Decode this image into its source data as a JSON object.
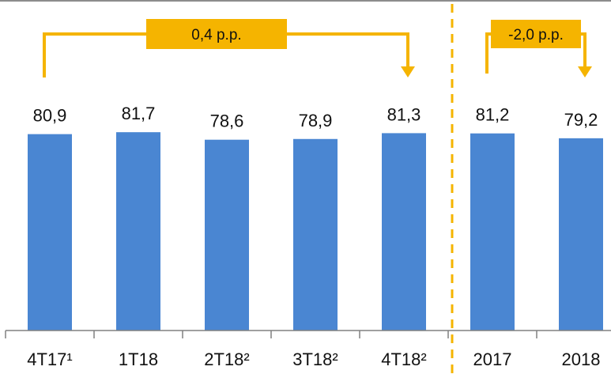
{
  "chart_data": {
    "type": "bar",
    "categories": [
      "4T17¹",
      "1T18",
      "2T18²",
      "3T18²",
      "4T18²",
      "2017",
      "2018"
    ],
    "values": [
      80.9,
      81.7,
      78.6,
      78.9,
      81.3,
      81.2,
      79.2
    ],
    "value_labels": [
      "80,9",
      "81,7",
      "78,6",
      "78,9",
      "81,3",
      "81,2",
      "79,2"
    ],
    "ylim": [
      0,
      100
    ],
    "grid": false,
    "legend": "none",
    "annotations": [
      {
        "text": "0,4 p.p.",
        "from": "4T17¹",
        "to": "4T18²"
      },
      {
        "text": "-2,0 p.p.",
        "from": "2017",
        "to": "2018"
      }
    ],
    "divider_between": [
      "4T18²",
      "2017"
    ]
  },
  "colors": {
    "bar": "#4A86D2",
    "accent": "#F5B400",
    "axis": "#808080",
    "text": "#111111"
  }
}
